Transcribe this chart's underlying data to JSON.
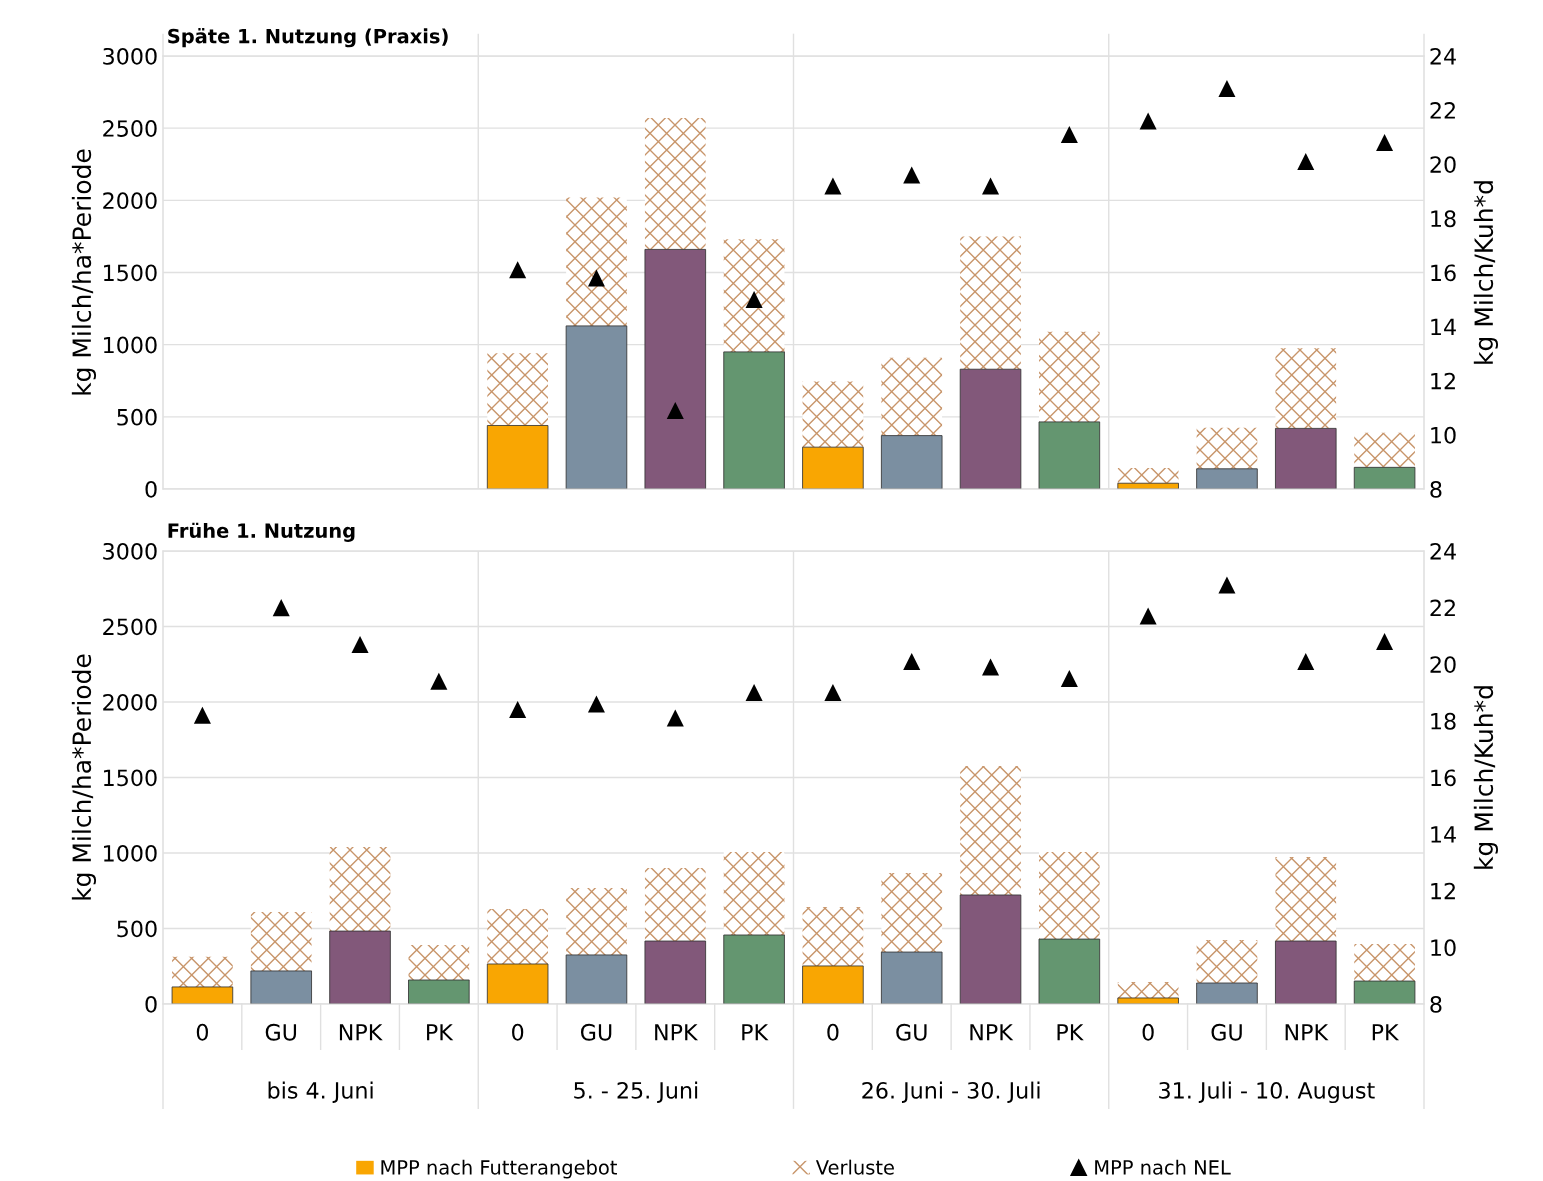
{
  "chart_data": [
    {
      "type": "bar",
      "title": "Späte 1. Nutzung (Praxis)",
      "ylabel": "kg Milch/ha*Periode",
      "y2label": "kg Milch/Kuh*d",
      "stacked": true,
      "grid": "y",
      "legend": false,
      "tick_labels": "y",
      "categories": [
        null,
        null,
        null,
        null,
        null,
        null,
        null,
        null,
        null,
        null,
        null,
        null,
        null,
        null,
        null,
        null
      ],
      "ylim": [
        0,
        3000
      ],
      "yticks": [
        0,
        500,
        1000,
        1500,
        2000,
        2500,
        3000
      ],
      "y2lim": [
        8,
        24
      ],
      "y2ticks": [
        8,
        10,
        12,
        14,
        16,
        18,
        20,
        22,
        24
      ],
      "series": [
        {
          "colors": [
            "#f9a602",
            "#7b8fa1",
            "#82587a",
            "#649670",
            "#f9a602",
            "#7b8fa1",
            "#82587a",
            "#649670",
            "#f9a602",
            "#7b8fa1",
            "#82587a",
            "#649670",
            "#f9a602",
            "#7b8fa1",
            "#82587a",
            "#649670"
          ],
          "values": [
            null,
            null,
            null,
            null,
            440,
            1130,
            1660,
            950,
            290,
            370,
            830,
            465,
            40,
            140,
            420,
            150
          ]
        },
        {
          "color": "#c8956a",
          "values": [
            null,
            null,
            null,
            null,
            500,
            890,
            910,
            780,
            455,
            540,
            920,
            625,
            105,
            285,
            555,
            240
          ]
        },
        {
          "type": "scatter",
          "axis": "y2",
          "marker": "triangle",
          "color": "#000000",
          "values": [
            null,
            null,
            null,
            null,
            16.1,
            15.8,
            10.9,
            15.0,
            19.2,
            19.6,
            19.2,
            21.1,
            21.6,
            22.8,
            20.1,
            20.8
          ]
        }
      ]
    },
    {
      "type": "bar",
      "title": "Frühe 1. Nutzung",
      "ylabel": "kg Milch/ha*Periode",
      "y2label": "kg Milch/Kuh*d",
      "stacked": true,
      "grid": "y",
      "legend": "bottom",
      "categories": [
        "0",
        "GU",
        "NPK",
        "PK",
        "0",
        "GU",
        "NPK",
        "PK",
        "0",
        "GU",
        "NPK",
        "PK",
        "0",
        "GU",
        "NPK",
        "PK"
      ],
      "annotations": [
        "bis 4. Juni",
        "5. - 25. Juni",
        "26. Juni - 30. Juli",
        "31. Juli - 10. August"
      ],
      "ylim": [
        0,
        3000
      ],
      "yticks": [
        0,
        500,
        1000,
        1500,
        2000,
        2500,
        3000
      ],
      "y2lim": [
        8,
        24
      ],
      "y2ticks": [
        8,
        10,
        12,
        14,
        16,
        18,
        20,
        22,
        24
      ],
      "series": [
        {
          "name": "MPP nach Futterangebot",
          "color": "#f9a602",
          "colors": [
            "#f9a602",
            "#7b8fa1",
            "#82587a",
            "#649670",
            "#f9a602",
            "#7b8fa1",
            "#82587a",
            "#649670",
            "#f9a602",
            "#7b8fa1",
            "#82587a",
            "#649670",
            "#f9a602",
            "#7b8fa1",
            "#82587a",
            "#649670"
          ],
          "values": [
            113,
            219,
            483,
            159,
            265,
            325,
            417,
            457,
            252,
            344,
            722,
            430,
            40,
            139,
            417,
            152
          ]
        },
        {
          "name": "Verluste",
          "color": "#c8956a",
          "values": [
            200,
            390,
            557,
            232,
            364,
            443,
            484,
            550,
            390,
            524,
            854,
            577,
            106,
            285,
            557,
            245
          ]
        },
        {
          "name": "MPP nach NEL",
          "type": "scatter",
          "axis": "y2",
          "marker": "triangle",
          "color": "#000000",
          "values": [
            18.2,
            22.0,
            20.7,
            19.4,
            18.4,
            18.6,
            18.1,
            19.0,
            19.0,
            20.1,
            19.9,
            19.5,
            21.7,
            22.8,
            20.1,
            20.8
          ]
        }
      ]
    }
  ]
}
